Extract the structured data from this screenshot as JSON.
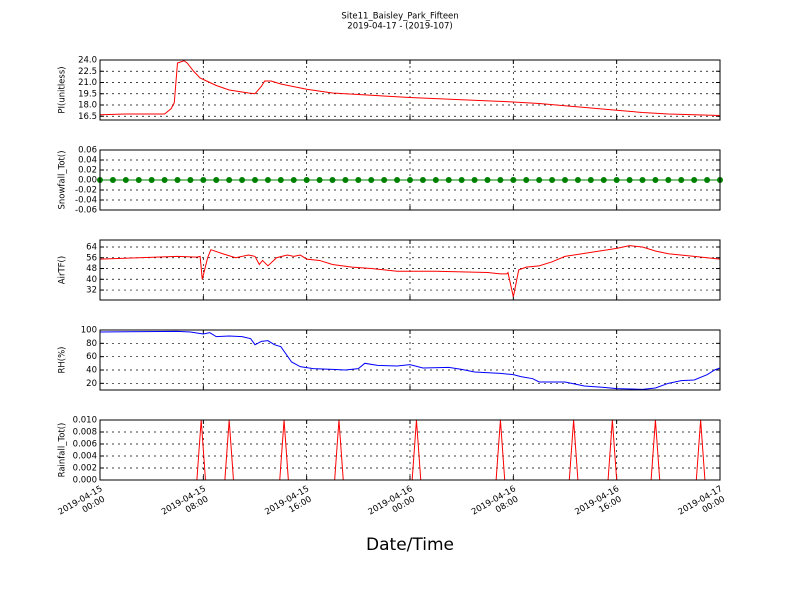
{
  "title": "Site11_Baisley_Park_Fifteen",
  "subtitle": "2019-04-17 - (2019-107)",
  "x_label": "Date/Time",
  "chart_data": [
    {
      "type": "line",
      "y_label": "PI(unitless)",
      "color": "#ff0000",
      "ylim": [
        16,
        24
      ],
      "yticks": [
        16.5,
        {
          "value": 18,
          "label": "18.0"
        },
        19.5,
        {
          "value": 21,
          "label": "21.0"
        },
        22.5,
        {
          "value": 24,
          "label": "24.0"
        }
      ],
      "x": [
        "2019-04-15 00:00",
        "2019-04-15 02:00",
        "2019-04-15 04:00",
        "2019-04-15 05:00",
        "2019-04-15 05:30",
        "2019-04-15 05:45",
        "2019-04-15 06:00",
        "2019-04-15 06:30",
        "2019-04-15 06:45",
        "2019-04-15 07:15",
        "2019-04-15 07:45",
        "2019-04-15 08:15",
        "2019-04-15 09:00",
        "2019-04-15 10:00",
        "2019-04-15 11:30",
        "2019-04-15 12:00",
        "2019-04-15 12:30",
        "2019-04-15 12:45",
        "2019-04-15 13:15",
        "2019-04-15 14:00",
        "2019-04-15 16:00",
        "2019-04-15 18:00",
        "2019-04-15 20:00",
        "2019-04-16 00:00",
        "2019-04-16 04:00",
        "2019-04-16 08:00",
        "2019-04-16 10:00",
        "2019-04-16 12:00",
        "2019-04-16 14:00",
        "2019-04-16 16:00",
        "2019-04-16 18:00",
        "2019-04-16 20:00",
        "2019-04-16 22:00",
        "2019-04-17 00:00"
      ],
      "values": [
        16.7,
        16.8,
        16.8,
        16.8,
        17.5,
        18.3,
        23.6,
        23.9,
        23.6,
        22.5,
        21.6,
        21.2,
        20.6,
        20.0,
        19.6,
        19.5,
        20.5,
        21.2,
        21.2,
        20.8,
        20.1,
        19.6,
        19.4,
        19.0,
        18.7,
        18.4,
        18.2,
        17.9,
        17.6,
        17.3,
        17.0,
        16.8,
        16.7,
        16.6
      ]
    },
    {
      "type": "scatter-line",
      "y_label": "Snowfall_Tot()",
      "color": "#008000",
      "ylim": [
        -0.06,
        0.06
      ],
      "yticks": [
        -0.06,
        -0.04,
        -0.02,
        {
          "value": 0,
          "label": "0.00"
        },
        0.02,
        0.04,
        0.06
      ],
      "x": [
        "2019-04-15 00:00",
        "2019-04-15 01:00",
        "2019-04-15 02:00",
        "2019-04-15 03:00",
        "2019-04-15 04:00",
        "2019-04-15 05:00",
        "2019-04-15 06:00",
        "2019-04-15 07:00",
        "2019-04-15 08:00",
        "2019-04-15 09:00",
        "2019-04-15 10:00",
        "2019-04-15 11:00",
        "2019-04-15 12:00",
        "2019-04-15 13:00",
        "2019-04-15 14:00",
        "2019-04-15 15:00",
        "2019-04-15 16:00",
        "2019-04-15 17:00",
        "2019-04-15 18:00",
        "2019-04-15 19:00",
        "2019-04-15 20:00",
        "2019-04-15 21:00",
        "2019-04-15 22:00",
        "2019-04-15 23:00",
        "2019-04-16 00:00",
        "2019-04-16 01:00",
        "2019-04-16 02:00",
        "2019-04-16 03:00",
        "2019-04-16 04:00",
        "2019-04-16 05:00",
        "2019-04-16 06:00",
        "2019-04-16 07:00",
        "2019-04-16 08:00",
        "2019-04-16 09:00",
        "2019-04-16 10:00",
        "2019-04-16 11:00",
        "2019-04-16 12:00",
        "2019-04-16 13:00",
        "2019-04-16 14:00",
        "2019-04-16 15:00",
        "2019-04-16 16:00",
        "2019-04-16 17:00",
        "2019-04-16 18:00",
        "2019-04-16 19:00",
        "2019-04-16 20:00",
        "2019-04-16 21:00",
        "2019-04-16 22:00",
        "2019-04-16 23:00",
        "2019-04-17 00:00"
      ],
      "values": [
        0,
        0,
        0,
        0,
        0,
        0,
        0,
        0,
        0,
        0,
        0,
        0,
        0,
        0,
        0,
        0,
        0,
        0,
        0,
        0,
        0,
        0,
        0,
        0,
        0,
        0,
        0,
        0,
        0,
        0,
        0,
        0,
        0,
        0,
        0,
        0,
        0,
        0,
        0,
        0,
        0,
        0,
        0,
        0,
        0,
        0,
        0,
        0,
        0
      ]
    },
    {
      "type": "line",
      "y_label": "AirTF()",
      "color": "#ff0000",
      "ylim": [
        24.6,
        69.2
      ],
      "yticks": [
        32,
        40,
        48,
        56,
        64
      ],
      "x": [
        "2019-04-15 00:00",
        "2019-04-15 03:00",
        "2019-04-15 06:00",
        "2019-04-15 07:30",
        "2019-04-15 07:45",
        "2019-04-15 07:55",
        "2019-04-15 08:20",
        "2019-04-15 08:35",
        "2019-04-15 09:30",
        "2019-04-15 10:30",
        "2019-04-15 11:30",
        "2019-04-15 12:00",
        "2019-04-15 12:20",
        "2019-04-15 12:35",
        "2019-04-15 13:00",
        "2019-04-15 13:40",
        "2019-04-15 14:30",
        "2019-04-15 15:00",
        "2019-04-15 15:30",
        "2019-04-15 16:00",
        "2019-04-15 17:00",
        "2019-04-15 18:00",
        "2019-04-15 19:30",
        "2019-04-15 21:00",
        "2019-04-15 23:00",
        "2019-04-16 02:00",
        "2019-04-16 06:00",
        "2019-04-16 07:00",
        "2019-04-16 07:30",
        "2019-04-16 07:35",
        "2019-04-16 08:00",
        "2019-04-16 08:25",
        "2019-04-16 09:00",
        "2019-04-16 10:00",
        "2019-04-16 11:00",
        "2019-04-16 12:00",
        "2019-04-16 14:00",
        "2019-04-16 16:00",
        "2019-04-16 17:00",
        "2019-04-16 18:00",
        "2019-04-16 19:00",
        "2019-04-16 20:00",
        "2019-04-16 22:00",
        "2019-04-17 00:00"
      ],
      "values": [
        55,
        56,
        57,
        56.5,
        57,
        40,
        56,
        62,
        59,
        56,
        58,
        57,
        51,
        54,
        50,
        56,
        58,
        57,
        58,
        55,
        54,
        51,
        49,
        48,
        46,
        46,
        45,
        44,
        44,
        45,
        27,
        47,
        49,
        50,
        53,
        57,
        60,
        63,
        65,
        64,
        61,
        59,
        57,
        55
      ]
    },
    {
      "type": "line",
      "y_label": "RH(%)",
      "color": "#0000ff",
      "ylim": [
        10,
        100
      ],
      "yticks": [
        20,
        40,
        60,
        80,
        100
      ],
      "x": [
        "2019-04-15 00:00",
        "2019-04-15 06:00",
        "2019-04-15 07:00",
        "2019-04-15 08:00",
        "2019-04-15 08:30",
        "2019-04-15 09:00",
        "2019-04-15 10:00",
        "2019-04-15 11:00",
        "2019-04-15 11:40",
        "2019-04-15 12:00",
        "2019-04-15 12:30",
        "2019-04-15 13:00",
        "2019-04-15 13:30",
        "2019-04-15 14:00",
        "2019-04-15 14:50",
        "2019-04-15 15:30",
        "2019-04-15 16:30",
        "2019-04-15 18:00",
        "2019-04-15 19:00",
        "2019-04-15 20:00",
        "2019-04-15 20:30",
        "2019-04-15 21:30",
        "2019-04-15 23:00",
        "2019-04-16 00:00",
        "2019-04-16 01:00",
        "2019-04-16 03:00",
        "2019-04-16 04:00",
        "2019-04-16 05:00",
        "2019-04-16 07:00",
        "2019-04-16 08:00",
        "2019-04-16 08:35",
        "2019-04-16 09:30",
        "2019-04-16 10:00",
        "2019-04-16 12:00",
        "2019-04-16 13:30",
        "2019-04-16 15:00",
        "2019-04-16 16:00",
        "2019-04-16 18:00",
        "2019-04-16 19:00",
        "2019-04-16 20:00",
        "2019-04-16 21:00",
        "2019-04-16 22:00",
        "2019-04-16 23:00",
        "2019-04-16 23:35",
        "2019-04-17 00:00"
      ],
      "values": [
        97,
        98,
        97,
        94,
        96,
        90,
        91,
        90,
        87,
        78,
        83,
        84,
        78,
        75,
        52,
        45,
        42,
        41,
        40,
        42,
        50,
        47,
        46,
        48,
        43,
        44,
        41,
        37,
        35,
        33,
        30,
        27,
        22,
        22,
        16,
        14,
        12,
        11,
        13,
        20,
        24,
        25,
        33,
        40,
        43
      ]
    },
    {
      "type": "line",
      "y_label": "Rainfall_Tot()",
      "color": "#ff0000",
      "ylim": [
        0,
        0.01
      ],
      "yticks": [
        {
          "value": 0,
          "label": "0.000"
        },
        {
          "value": 0.002,
          "label": "0.002"
        },
        {
          "value": 0.004,
          "label": "0.004"
        },
        {
          "value": 0.006,
          "label": "0.006"
        },
        {
          "value": 0.008,
          "label": "0.008"
        },
        {
          "value": 0.01,
          "label": "0.010"
        }
      ],
      "xlim": [
        "2019-04-15 00:00",
        "2019-04-17 00:00"
      ],
      "xticks": [
        "2019-04-15 00:00",
        "2019-04-15 08:00",
        "2019-04-15 16:00",
        "2019-04-16 00:00",
        "2019-04-16 08:00",
        "2019-04-16 16:00",
        "2019-04-17 00:00"
      ],
      "x": [
        "2019-04-15 00:00",
        "2019-04-15 07:30",
        "2019-04-15 07:50",
        "2019-04-15 08:10",
        "2019-04-15 09:40",
        "2019-04-15 10:00",
        "2019-04-15 10:20",
        "2019-04-15 13:55",
        "2019-04-15 14:15",
        "2019-04-15 14:35",
        "2019-04-15 18:10",
        "2019-04-15 18:30",
        "2019-04-15 18:50",
        "2019-04-16 00:10",
        "2019-04-16 00:30",
        "2019-04-16 00:50",
        "2019-04-16 06:40",
        "2019-04-16 07:00",
        "2019-04-16 07:20",
        "2019-04-16 12:20",
        "2019-04-16 12:40",
        "2019-04-16 13:00",
        "2019-04-16 15:20",
        "2019-04-16 15:40",
        "2019-04-16 16:00",
        "2019-04-16 18:40",
        "2019-04-16 19:00",
        "2019-04-16 19:20",
        "2019-04-16 22:10",
        "2019-04-16 22:30",
        "2019-04-16 22:50",
        "2019-04-17 00:00"
      ],
      "values": [
        0,
        0,
        0.01,
        0,
        0,
        0.01,
        0,
        0,
        0.01,
        0,
        0,
        0.01,
        0,
        0,
        0.01,
        0,
        0,
        0.01,
        0,
        0,
        0.01,
        0,
        0,
        0.01,
        0,
        0,
        0.01,
        0,
        0,
        0.01,
        0,
        0
      ]
    }
  ]
}
